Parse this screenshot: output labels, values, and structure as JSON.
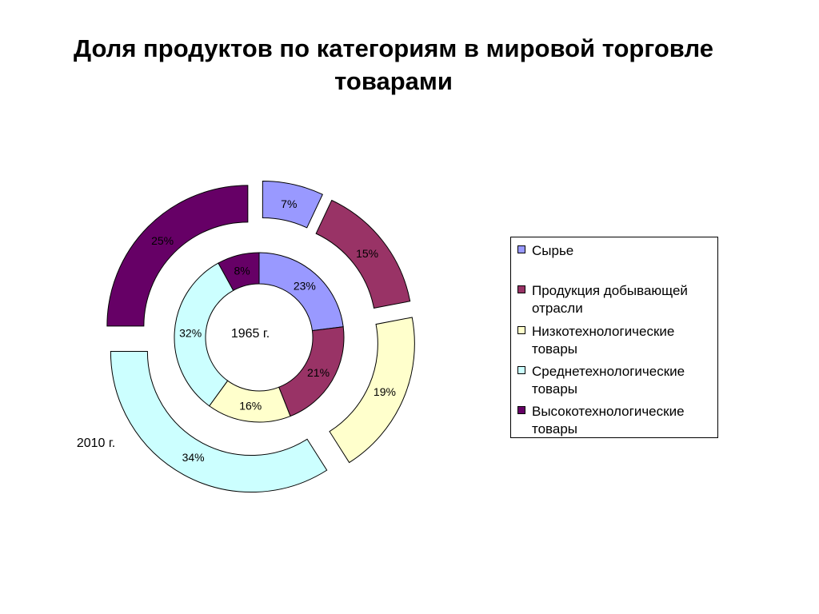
{
  "title": "Доля продуктов по категориям в мировой торговле товарами",
  "chart_data": {
    "type": "pie",
    "variant": "exploded-doughnut",
    "categories": [
      "Сырье",
      "Продукция добывающей отрасли",
      "Низкотехнологические товары",
      "Среднетехнологические товары",
      "Высокотехнологические товары"
    ],
    "colors": [
      "#9999ff",
      "#993366",
      "#ffffcc",
      "#ccffff",
      "#660066"
    ],
    "series": [
      {
        "name": "1965 г.",
        "ring": "inner",
        "values": [
          23,
          21,
          16,
          32,
          8
        ],
        "labels": [
          "23%",
          "21%",
          "16%",
          "32%",
          "8%"
        ]
      },
      {
        "name": "2010 г.",
        "ring": "outer",
        "values": [
          7,
          15,
          19,
          34,
          25
        ],
        "labels": [
          "7%",
          "15%",
          "19%",
          "34%",
          "25%"
        ]
      }
    ],
    "legend_position": "right"
  },
  "legend": [
    {
      "label": "Сырье",
      "color": "#9999ff"
    },
    {
      "label": "Продукция добывающей отрасли",
      "color": "#993366"
    },
    {
      "label": "Низкотехнологические товары",
      "color": "#ffffcc"
    },
    {
      "label": "Среднетехнологические товары",
      "color": "#ccffff"
    },
    {
      "label": "Высокотехнологические товары",
      "color": "#660066"
    }
  ]
}
